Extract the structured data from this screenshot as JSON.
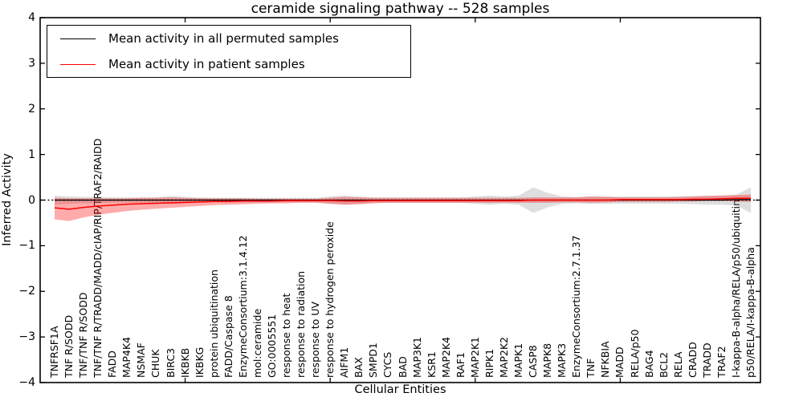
{
  "chart_data": {
    "type": "line",
    "title": "ceramide signaling pathway -- 528 samples",
    "xlabel": "Cellular Entities",
    "ylabel": "Inferred Activity",
    "ylim": [
      -4,
      4
    ],
    "grid": false,
    "legend_position": "upper left",
    "zero_reference_line": true,
    "y_ticks": [
      {
        "value": 4,
        "label": "4"
      },
      {
        "value": 3,
        "label": "3"
      },
      {
        "value": 2,
        "label": "2"
      },
      {
        "value": 1,
        "label": "1"
      },
      {
        "value": 0,
        "label": "0"
      },
      {
        "value": -1,
        "label": "−1"
      },
      {
        "value": -2,
        "label": "−2"
      },
      {
        "value": -3,
        "label": "−3"
      },
      {
        "value": -4,
        "label": "−4"
      }
    ],
    "x_major_tick_indices": [
      9,
      19,
      29,
      39
    ],
    "categories": [
      "TNFRSF1A",
      "TNF R/SODD",
      "TNF/TNF R/SODD",
      "TNF/TNF R/TRADD/MADD/cIAP/RIP/TRAF2/RAIDD",
      "FADD",
      "MAP4K4",
      "NSMAF",
      "CHUK",
      "BIRC3",
      "IKBKB",
      "IKBKG",
      "protein ubiquitination",
      "FADD/Caspase 8",
      "EnzymeConsortium:3.1.4.12",
      "mol:ceramide",
      "GO:0005551",
      "response to heat",
      "response to radiation",
      "response to UV",
      "response to hydrogen peroxide",
      "AIFM1",
      "BAX",
      "SMPD1",
      "CYCS",
      "BAD",
      "MAP3K1",
      "KSR1",
      "MAP2K4",
      "RAF1",
      "MAP2K1",
      "RIPK1",
      "MAP2K2",
      "MAPK1",
      "CASP8",
      "MAPK8",
      "MAPK3",
      "EnzymeConsortium:2.7.1.37",
      "TNF",
      "NFKBIA",
      "MADD",
      "RELA/p50",
      "BAG4",
      "BCL2",
      "RELA",
      "CRADD",
      "TRADD",
      "TRAF2",
      "I-kappa-B-alpha/RELA/p50/ubiquitin",
      "p50/RELA/I-kappa-B-alpha"
    ],
    "series": [
      {
        "name": "Mean activity in all permuted samples",
        "color": "#000000",
        "band_color": "#888888",
        "band_opacity": 0.28,
        "values": [
          0,
          0,
          0,
          0,
          0,
          0,
          0,
          0,
          0,
          0,
          0,
          0,
          0,
          0,
          0,
          0,
          0,
          0,
          0,
          0,
          0,
          0,
          0,
          0,
          0,
          0,
          0,
          0,
          0,
          0,
          0,
          0,
          0,
          0,
          0,
          0,
          0,
          0,
          0,
          0,
          0,
          0,
          0,
          0,
          0,
          0,
          0,
          0.01,
          0.01
        ],
        "band_high": [
          0.1,
          0.08,
          0.07,
          0.07,
          0.06,
          0.06,
          0.06,
          0.06,
          0.09,
          0.07,
          0.06,
          0.05,
          0.05,
          0.05,
          0.05,
          0.05,
          0.05,
          0.05,
          0.05,
          0.08,
          0.1,
          0.08,
          0.06,
          0.06,
          0.06,
          0.06,
          0.06,
          0.06,
          0.06,
          0.08,
          0.1,
          0.08,
          0.1,
          0.28,
          0.16,
          0.08,
          0.07,
          0.08,
          0.08,
          0.08,
          0.08,
          0.08,
          0.08,
          0.08,
          0.09,
          0.1,
          0.1,
          0.12,
          0.28
        ],
        "band_low": [
          -0.1,
          -0.08,
          -0.07,
          -0.07,
          -0.06,
          -0.06,
          -0.06,
          -0.06,
          -0.09,
          -0.07,
          -0.06,
          -0.05,
          -0.05,
          -0.05,
          -0.05,
          -0.05,
          -0.05,
          -0.05,
          -0.05,
          -0.08,
          -0.1,
          -0.08,
          -0.06,
          -0.06,
          -0.06,
          -0.06,
          -0.06,
          -0.06,
          -0.06,
          -0.08,
          -0.1,
          -0.08,
          -0.1,
          -0.28,
          -0.16,
          -0.08,
          -0.07,
          -0.08,
          -0.08,
          -0.08,
          -0.08,
          -0.08,
          -0.08,
          -0.08,
          -0.09,
          -0.1,
          -0.1,
          -0.12,
          -0.28
        ]
      },
      {
        "name": "Mean activity in patient samples",
        "color": "#ff0000",
        "band_color": "#ff0000",
        "band_opacity": 0.33,
        "values": [
          -0.17,
          -0.2,
          -0.16,
          -0.13,
          -0.11,
          -0.09,
          -0.08,
          -0.07,
          -0.06,
          -0.05,
          -0.04,
          -0.03,
          -0.03,
          -0.02,
          -0.02,
          -0.02,
          -0.01,
          -0.01,
          -0.01,
          -0.01,
          -0.02,
          -0.02,
          -0.01,
          -0.01,
          -0.01,
          -0.01,
          -0.01,
          -0.01,
          -0.01,
          -0.01,
          -0.01,
          -0.01,
          -0.01,
          0,
          0,
          0,
          0,
          0,
          0,
          0.01,
          0.01,
          0.01,
          0.01,
          0.01,
          0.02,
          0.02,
          0.03,
          0.04,
          0.04
        ],
        "band_high": [
          0.05,
          0.04,
          0.04,
          0.04,
          0.04,
          0.04,
          0.05,
          0.05,
          0.06,
          0.05,
          0.04,
          0.04,
          0.04,
          0.04,
          0.03,
          0.03,
          0.03,
          0.03,
          0.03,
          0.05,
          0.07,
          0.06,
          0.05,
          0.05,
          0.05,
          0.05,
          0.05,
          0.05,
          0.05,
          0.05,
          0.05,
          0.05,
          0.05,
          0.06,
          0.06,
          0.06,
          0.06,
          0.08,
          0.07,
          0.06,
          0.06,
          0.06,
          0.06,
          0.07,
          0.08,
          0.09,
          0.1,
          0.11,
          0.12
        ],
        "band_low": [
          -0.42,
          -0.46,
          -0.38,
          -0.32,
          -0.28,
          -0.24,
          -0.21,
          -0.19,
          -0.17,
          -0.15,
          -0.13,
          -0.11,
          -0.1,
          -0.09,
          -0.08,
          -0.07,
          -0.07,
          -0.06,
          -0.06,
          -0.08,
          -0.1,
          -0.09,
          -0.07,
          -0.06,
          -0.06,
          -0.06,
          -0.06,
          -0.06,
          -0.06,
          -0.06,
          -0.06,
          -0.06,
          -0.06,
          -0.06,
          -0.06,
          -0.05,
          -0.05,
          -0.06,
          -0.05,
          -0.04,
          -0.04,
          -0.04,
          -0.04,
          -0.03,
          -0.03,
          -0.02,
          -0.02,
          -0.03,
          -0.04
        ]
      }
    ]
  }
}
